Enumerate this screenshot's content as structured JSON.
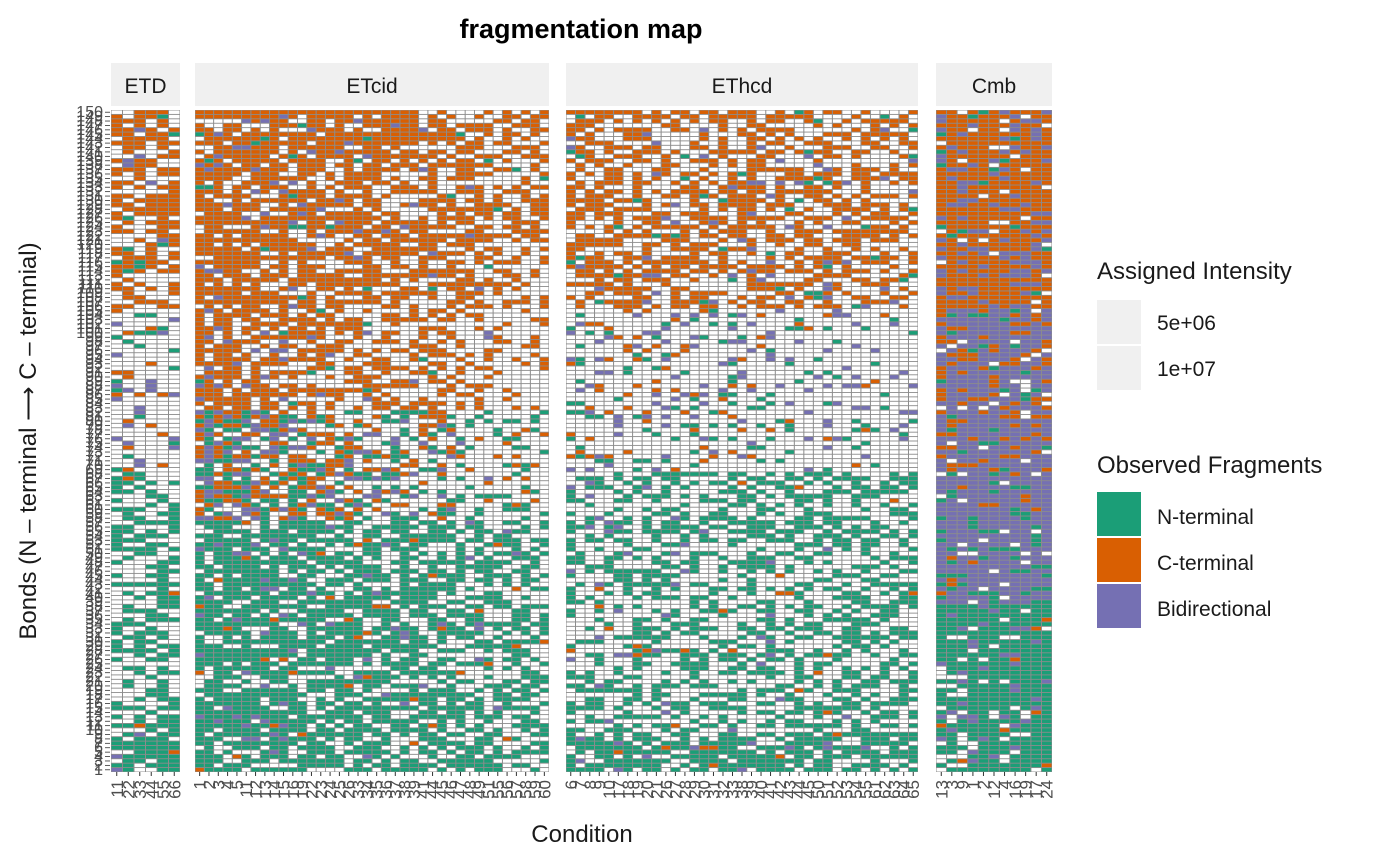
{
  "chart_data": {
    "type": "heatmap",
    "title": "fragmentation map",
    "xlabel": "Condition",
    "ylabel": "Bonds (N – terminal ⟶ C – termnial)",
    "y_range": [
      1,
      150
    ],
    "facets": [
      {
        "name": "ETD",
        "conditions": [
          "11",
          "22",
          "33",
          "44",
          "55",
          "66"
        ]
      },
      {
        "name": "ETcid",
        "conditions": [
          "1",
          "2",
          "3",
          "4",
          "5",
          "11",
          "12",
          "13",
          "14",
          "15",
          "16",
          "19",
          "22",
          "23",
          "24",
          "25",
          "26",
          "33",
          "34",
          "35",
          "36",
          "37",
          "38",
          "39",
          "41",
          "44",
          "45",
          "46",
          "47",
          "48",
          "49",
          "51",
          "55",
          "56",
          "57",
          "58",
          "59",
          "60"
        ]
      },
      {
        "name": "EThcd",
        "conditions": [
          "6",
          "7",
          "8",
          "9",
          "10",
          "17",
          "18",
          "19",
          "20",
          "21",
          "26",
          "27",
          "28",
          "29",
          "30",
          "31",
          "32",
          "33",
          "38",
          "39",
          "40",
          "41",
          "42",
          "43",
          "44",
          "45",
          "50",
          "51",
          "52",
          "53",
          "54",
          "55",
          "61",
          "62",
          "63",
          "64",
          "65"
        ]
      },
      {
        "name": "Cmb",
        "conditions": [
          "13",
          "3",
          "9",
          "1",
          "2",
          "12",
          "4",
          "16",
          "19",
          "17",
          "24"
        ]
      }
    ],
    "category_colors": {
      "none": "#f2f2f2",
      "N-terminal": "#1b9e77",
      "C-terminal": "#d95f02",
      "Bidirectional": "#7570b3"
    },
    "legend": {
      "placement": "right",
      "intensity_title": "Assigned Intensity",
      "intensity_labels": [
        "5e+06",
        "1e+07"
      ],
      "fragments_title": "Observed Fragments",
      "fragments_labels": [
        "N-terminal",
        "C-terminal",
        "Bidirectional"
      ]
    },
    "strip_fill": "#f0f0f0",
    "cell_line_color": "#8c8c8c",
    "note_cells": "cell states (0=none,1=N,2=C,3=Bi) per facet, condition-major, bond 150 down to 1; strings of 150 chars",
    "cells": {
      "ETD": [
        "002000000222222020002002000000200200002220000000000000000000000000000000001000000010000000001000000000000000000000000000000000000000000000000000",
        "000000000222022222222222220000222220000202000300000000000000200020000000000000000000000000000000000000000000000000000000000000000000000000000000",
        "020202022222222222220220022222002202200000002000011010100000100101001000000001000000000101001110100101101111110000000000000000000000000000000000",
        "020220222222220222222222222222022022200222022220200220222220200200222020220003000030000111101111111111110111111011111111111110000000000000000000",
        "022222222222222222222222222222222222220222222202220222222222000000222200220000000000011111111111111111101111111011111111111111111000000000000000",
        "022222222222222222222222222222222222222222222202200202220022000000022200000000000000001010111001011111101111111111111101111110111000000000000000"
      ],
      "ETcid": [],
      "EThcd": [],
      "Cmb": []
    }
  }
}
